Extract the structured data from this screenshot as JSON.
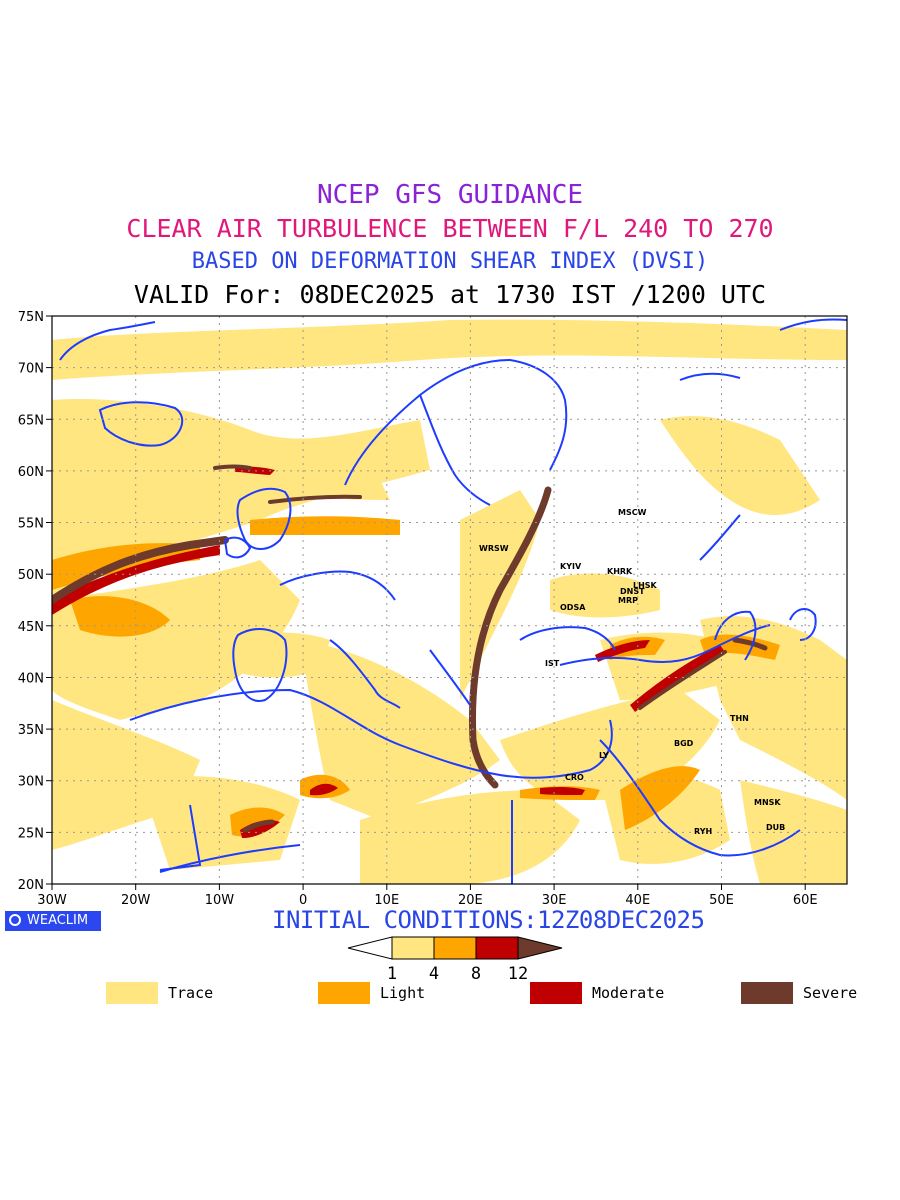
{
  "titles": {
    "line1": "NCEP GFS GUIDANCE",
    "line2": "CLEAR AIR TURBULENCE BETWEEN F/L 240 TO 270",
    "line3": "BASED ON DEFORMATION SHEAR INDEX (DVSI)",
    "line4": "VALID For: 08DEC2025 at 1730 IST /1200 UTC"
  },
  "colors": {
    "line1": "#8a22d6",
    "line2": "#e0187c",
    "line3": "#2a45e6",
    "line4": "#000000",
    "trace": "#ffe680",
    "light": "#ffa500",
    "moderate": "#c00000",
    "severe": "#6e3a2c",
    "coast": "#1e3cff"
  },
  "map": {
    "lat_labels": [
      "75N",
      "70N",
      "65N",
      "60N",
      "55N",
      "50N",
      "45N",
      "40N",
      "35N",
      "30N",
      "25N",
      "20N"
    ],
    "lon_labels": [
      "30W",
      "20W",
      "10W",
      "0",
      "10E",
      "20E",
      "30E",
      "40E",
      "50E",
      "60E"
    ],
    "cities": {
      "mscw": "MSCW",
      "wrsw": "WRSW",
      "kyiv": "KYIV",
      "khrk": "KHRK",
      "lhsk": "LHSK",
      "dnst": "DNST",
      "mrp": "MRP",
      "odsa": "ODSA",
      "ist": "IST",
      "thn": "THN",
      "bgd": "BGD",
      "ly": "LY",
      "cro": "CRO",
      "mnsk": "MNSK",
      "dub": "DUB",
      "ryh": "RYH"
    }
  },
  "footer": {
    "badge": "WEACLIM",
    "initial_conditions": "INITIAL CONDITIONS:12Z08DEC2025"
  },
  "colorbar": {
    "ticks": [
      "1",
      "4",
      "8",
      "12"
    ]
  },
  "legend": {
    "trace": "Trace",
    "light": "Light",
    "moderate": "Moderate",
    "severe": "Severe"
  }
}
